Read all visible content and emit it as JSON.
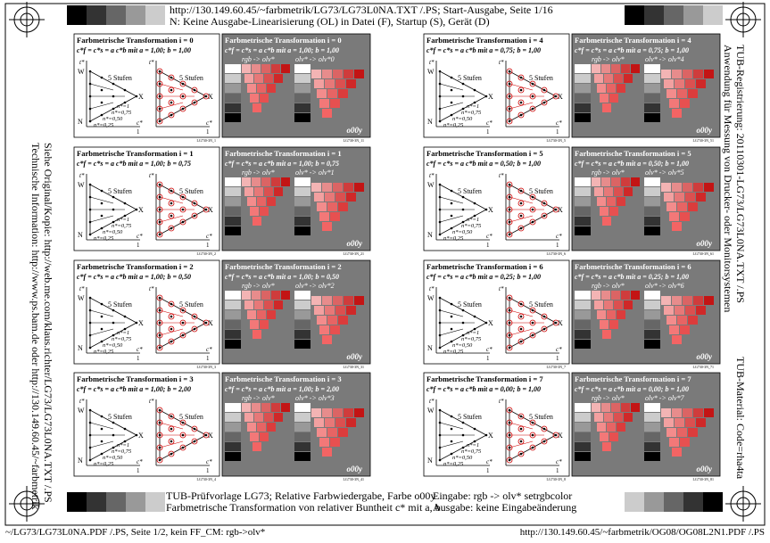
{
  "header": {
    "line1": "http://130.149.60.45/~farbmetrik/LG73/LG73L0NA.TXT /.PS; Start-Ausgabe, Seite 1/16",
    "line2": "N: Keine Ausgabe-Linearisierung (OL) in Datei (F), Startup (S), Gerät (D)"
  },
  "left_text": [
    "Siehe Original/Kopie: http://web.me.com/klaus.richter/LG73/LG73L0NA.TXT /.PS",
    "Technische Information: http://www.ps.bam.de oder http://130.149.60.45/~farbmetrik"
  ],
  "right_text": [
    "TUB-Registrierung: 20110301-LG73/LG73L0NA.TXT /.PS",
    "Anwendung für Messung von Drucker- oder Monitorsystemen",
    "TUB-Material: Code=rha4ta"
  ],
  "panel_labels": {
    "steps": "5 Stufen",
    "w": "W",
    "n": "N",
    "x": "X",
    "t": "t*",
    "c": "c*",
    "one": "1",
    "n1": "n*=1",
    "n075": "n*=0,75",
    "n050": "n*=0,50",
    "n025": "n*=0,25",
    "rgb": "rgb -> olv*",
    "color": "o00y"
  },
  "panels": [
    {
      "title": "Farbmetrische Transformation i = 0",
      "formula": "c*f = c*s = a c*b mit a = 1,00; b = 1,00",
      "map": "olv* -> olv*0",
      "code_a": "LG730-3N_1",
      "code_b": "LG730-3N_11"
    },
    {
      "title": "Farbmetrische Transformation i = 1",
      "formula": "c*f = c*s = a c*b mit a = 1,00; b = 0,75",
      "map": "olv* -> olv*1",
      "code_a": "LG730-3N_2",
      "code_b": "LG730-3N_21"
    },
    {
      "title": "Farbmetrische Transformation i = 2",
      "formula": "c*f = c*s = a c*b mit a = 1,00; b = 0,50",
      "map": "olv* -> olv*2",
      "code_a": "LG730-3N_3",
      "code_b": "LG730-3N_31"
    },
    {
      "title": "Farbmetrische Transformation i = 3",
      "formula": "c*f = c*s = a c*b mit a = 1,00; b = 2,00",
      "map": "olv* -> olv*3",
      "code_a": "LG730-3N_4",
      "code_b": "LG730-3N_41"
    },
    {
      "title": "Farbmetrische Transformation i = 4",
      "formula": "c*f = c*s = a c*b mit a = 0,75; b = 1,00",
      "map": "olv* -> olv*4",
      "code_a": "LG730-3N_5",
      "code_b": "LG730-3N_51"
    },
    {
      "title": "Farbmetrische Transformation i = 5",
      "formula": "c*f = c*s = a c*b mit a = 0,50; b = 1,00",
      "map": "olv* -> olv*5",
      "code_a": "LG730-3N_6",
      "code_b": "LG730-3N_61"
    },
    {
      "title": "Farbmetrische Transformation i = 6",
      "formula": "c*f = c*s = a c*b mit a = 0,25; b = 1,00",
      "map": "olv* -> olv*6",
      "code_a": "LG730-3N_7",
      "code_b": "LG730-3N_71"
    },
    {
      "title": "Farbmetrische Transformation i = 7",
      "formula": "c*f = c*s = a c*b mit a = 0,00; b = 1,00",
      "map": "olv* -> olv*7",
      "code_a": "LG730-3N_8",
      "code_b": "LG730-3N_81"
    }
  ],
  "footer": {
    "line1": "TUB-Prüfvorlage LG73; Relative Farbwiedergabe, Farbe o00y",
    "line2": "Farbmetrische Transformation von relativer Buntheit c* mit a, b",
    "input": "Eingabe: rgb -> olv* setrgbcolor",
    "output": "Ausgabe: keine Eingabeänderung"
  },
  "bottom": {
    "left": "~/LG73/LG73L0NA.PDF /.PS, Seite 1/2, kein FF_CM: rgb->olv*",
    "right": "http://130.149.60.45/~farbmetrik/OG08/OG08L2N1.PDF /.PS"
  }
}
